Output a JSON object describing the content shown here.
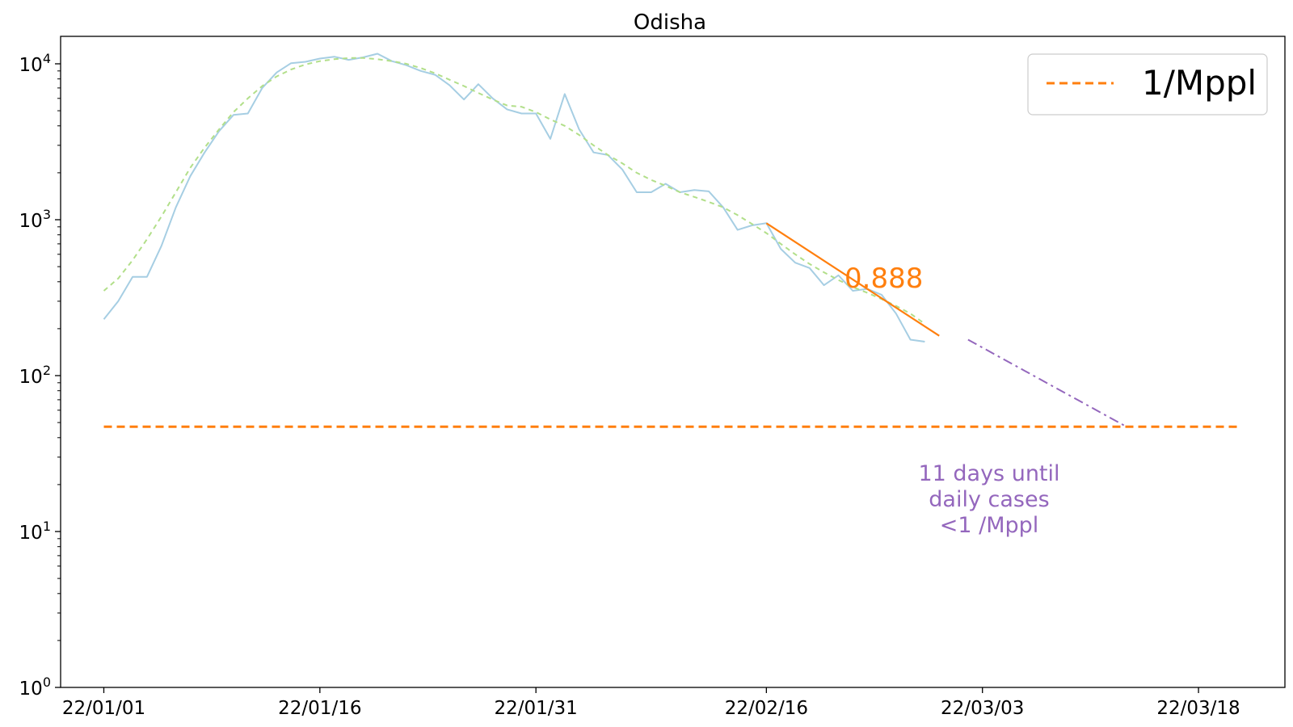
{
  "chart_data": {
    "type": "line",
    "title": "Odisha",
    "xlabel": "",
    "ylabel": "",
    "y_scale": "log",
    "ylim": [
      1,
      15000
    ],
    "xlim": [
      "2021-12-29",
      "2022-03-24"
    ],
    "grid": false,
    "legend_position": "top-right",
    "x_ticks": [
      "2022-01-01",
      "2022-01-16",
      "2022-01-31",
      "2022-02-16",
      "2022-03-03",
      "2022-03-18"
    ],
    "x_tick_labels": [
      "22/01/01",
      "22/01/16",
      "22/01/31",
      "22/02/16",
      "22/03/03",
      "22/03/18"
    ],
    "y_ticks": [
      1,
      10,
      100,
      1000,
      10000
    ],
    "y_tick_labels": [
      {
        "base": "10",
        "exp": "0"
      },
      {
        "base": "10",
        "exp": "1"
      },
      {
        "base": "10",
        "exp": "2"
      },
      {
        "base": "10",
        "exp": "3"
      },
      {
        "base": "10",
        "exp": "4"
      }
    ],
    "series": [
      {
        "style": "daily-cases",
        "color": "#a6cee3",
        "dash": "solid",
        "start": "2022-01-01",
        "values": [
          230,
          300,
          430,
          430,
          680,
          1200,
          1900,
          2700,
          3700,
          4700,
          4800,
          7000,
          8800,
          10100,
          10300,
          10800,
          11100,
          10600,
          11000,
          11600,
          10400,
          9800,
          9000,
          8500,
          7300,
          5900,
          7400,
          6000,
          5100,
          4800,
          4800,
          3300,
          6400,
          3800,
          2700,
          2600,
          2100,
          1500,
          1500,
          1700,
          1500,
          1550,
          1520,
          1200,
          860,
          920,
          950,
          650,
          530,
          490,
          380,
          440,
          350,
          360,
          330,
          250,
          170,
          165
        ]
      },
      {
        "style": "smoothed",
        "color": "#b2df8a",
        "dash": "dashed",
        "start": "2022-01-01",
        "values": [
          350,
          420,
          550,
          750,
          1050,
          1500,
          2150,
          2900,
          3800,
          4900,
          6000,
          7200,
          8300,
          9200,
          9900,
          10400,
          10700,
          10900,
          10900,
          10700,
          10400,
          10000,
          9400,
          8700,
          7900,
          7200,
          6500,
          5900,
          5400,
          5300,
          4900,
          4400,
          4000,
          3500,
          3000,
          2600,
          2300,
          2000,
          1800,
          1650,
          1500,
          1400,
          1300,
          1200,
          1070,
          940,
          820,
          700,
          600,
          520,
          460,
          410,
          370,
          340,
          310,
          280,
          250,
          215
        ]
      },
      {
        "name": "1/Mppl",
        "color": "#ff7f0e",
        "dash": "dashed",
        "x": [
          "2022-01-01",
          "2022-03-21"
        ],
        "values": [
          47,
          47
        ]
      }
    ],
    "fit_line": {
      "color": "#ff7f0e",
      "x": [
        "2022-02-16",
        "2022-02-28"
      ],
      "values": [
        950,
        180
      ],
      "label": "0.888"
    },
    "projection": {
      "color": "#9467bd",
      "x": [
        "2022-03-02",
        "2022-03-13"
      ],
      "values": [
        170,
        47
      ]
    },
    "annotation": {
      "lines": [
        "11 days until",
        "daily cases",
        "<1 /Mppl"
      ],
      "color": "#9467bd"
    }
  }
}
